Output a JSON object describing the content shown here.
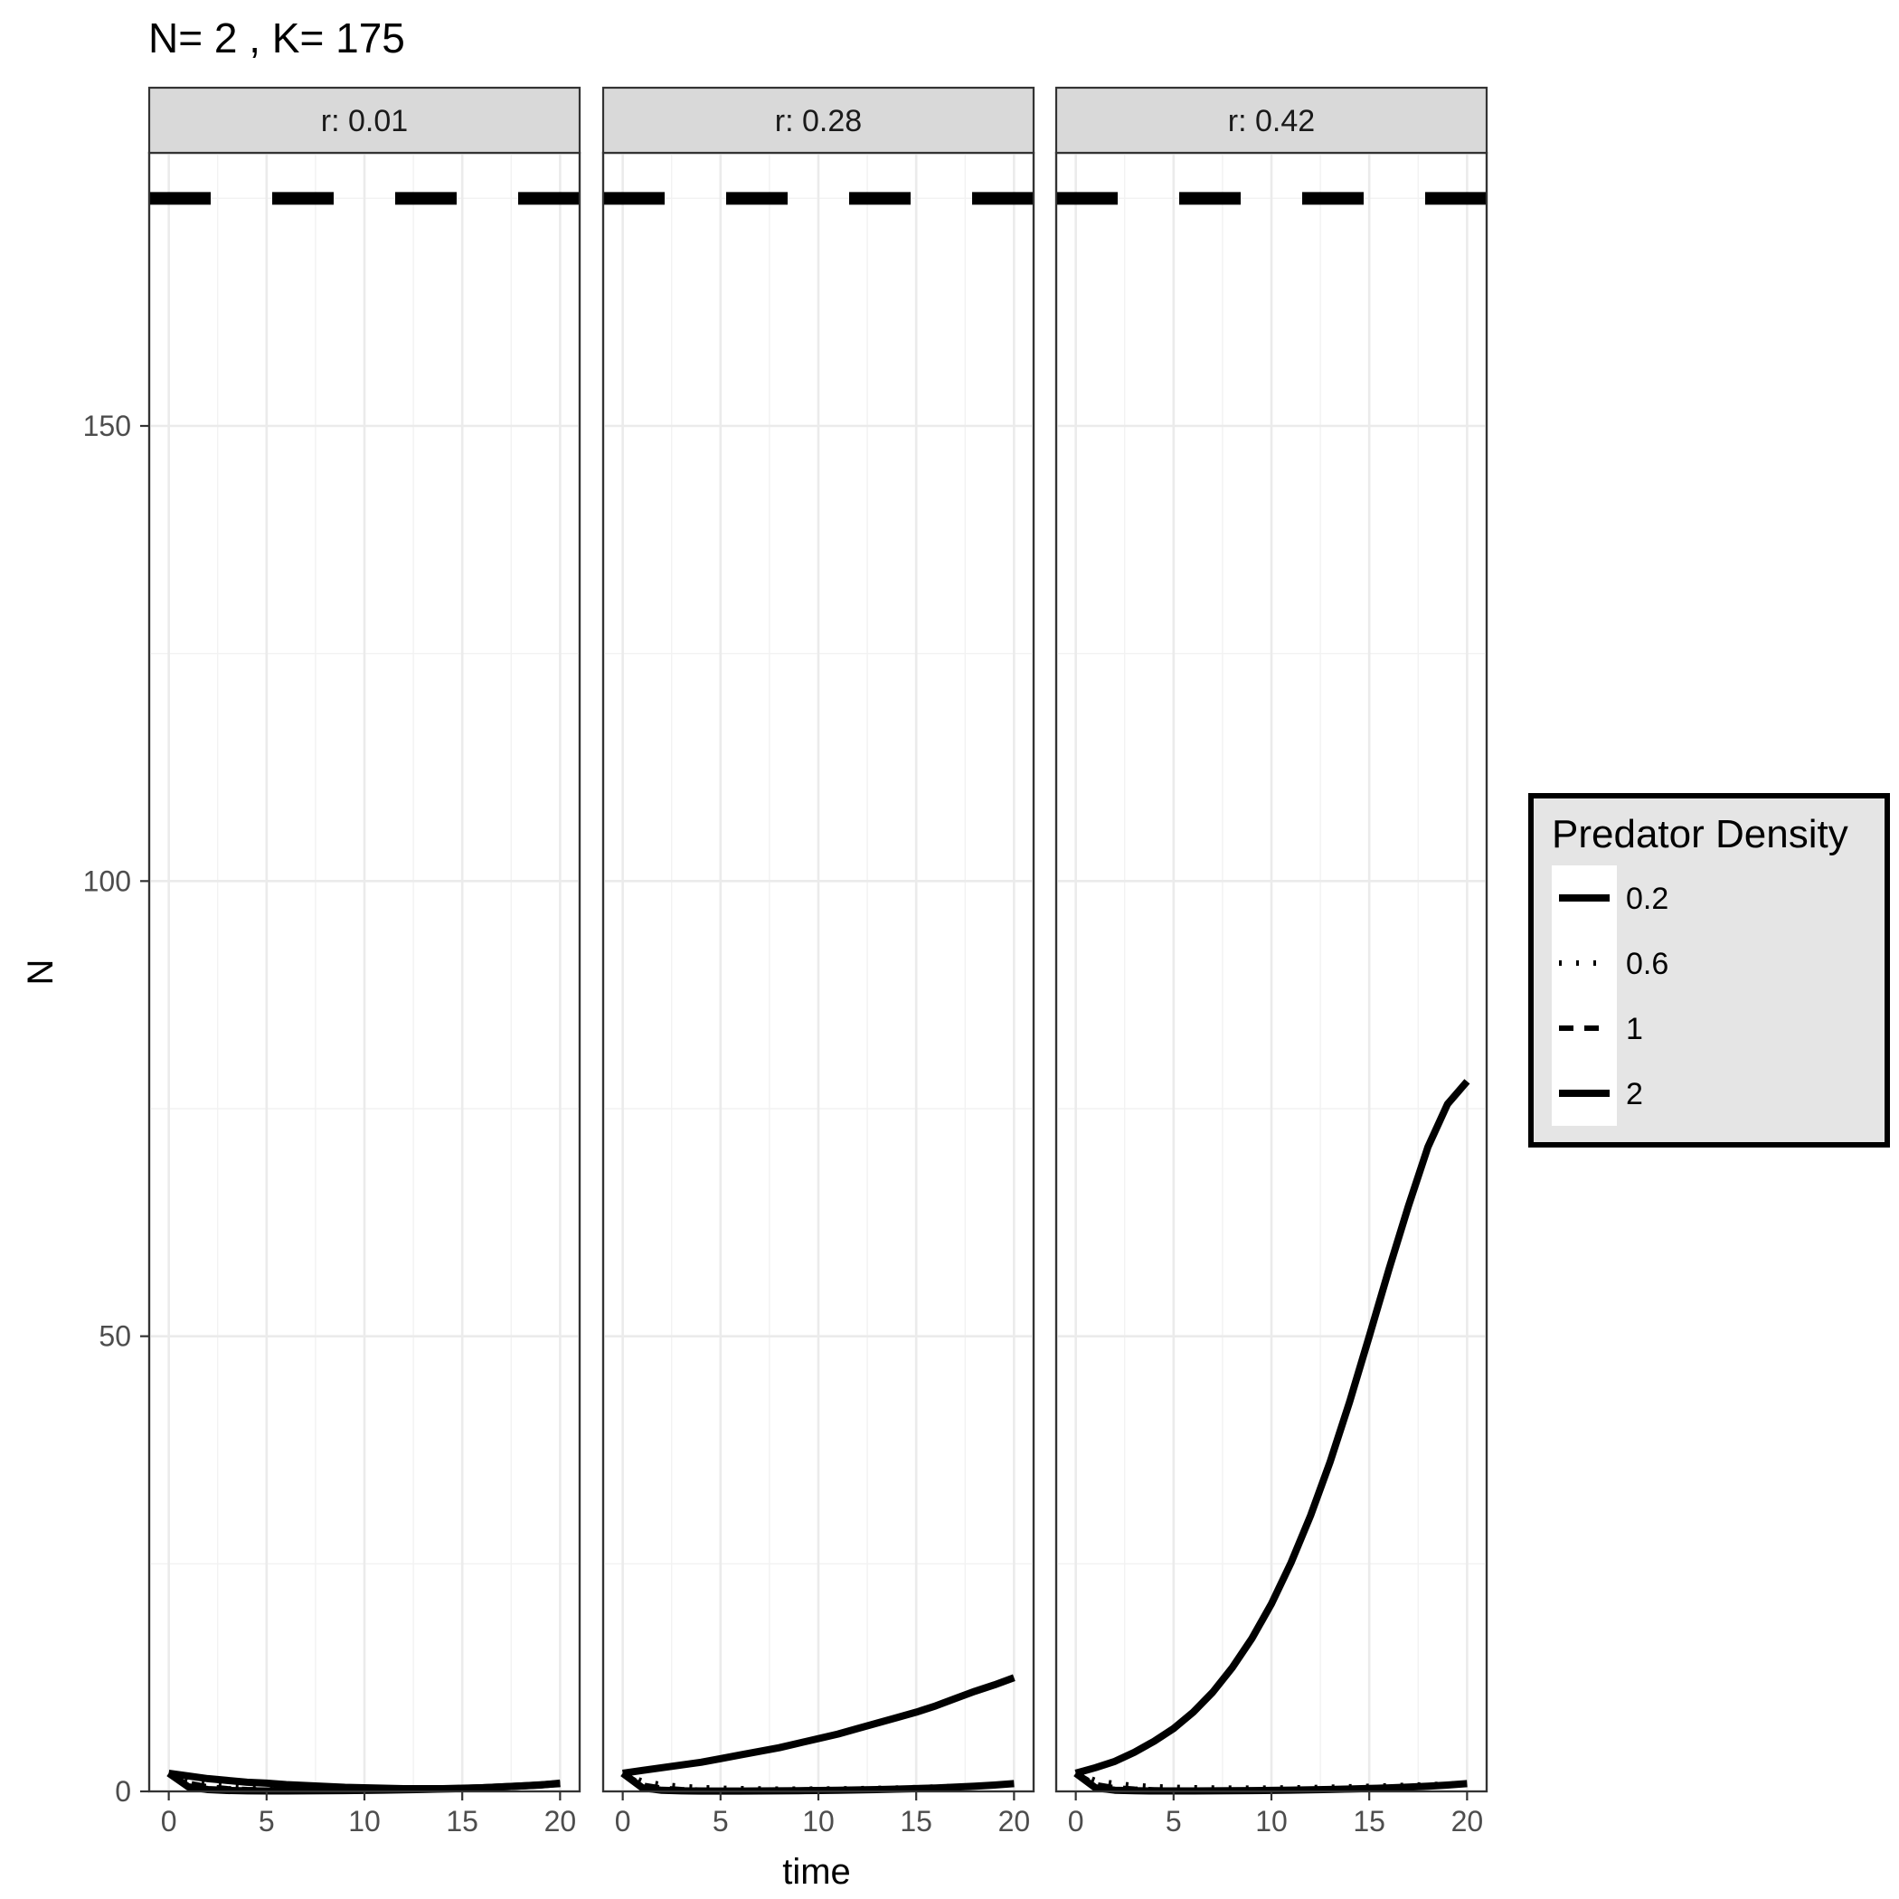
{
  "chart_data": {
    "type": "line",
    "title": "N= 2 , K= 175",
    "xlabel": "time",
    "ylabel": "N",
    "xlim": [
      -1,
      21
    ],
    "ylim": [
      0,
      180
    ],
    "x_ticks": [
      0,
      5,
      10,
      15,
      20
    ],
    "y_ticks": [
      0,
      50,
      100,
      150
    ],
    "grid": true,
    "facet_prefix": "r: ",
    "carrying_capacity": 175,
    "legend": {
      "title": "Predator Density",
      "position": "right",
      "entries": [
        {
          "label": "0.2",
          "linetype": "solid"
        },
        {
          "label": "0.6",
          "linetype": "dotted"
        },
        {
          "label": "1",
          "linetype": "dashed"
        },
        {
          "label": "2",
          "linetype": "solid"
        }
      ]
    },
    "x": [
      0,
      1,
      2,
      3,
      4,
      5,
      6,
      7,
      8,
      9,
      10,
      11,
      12,
      13,
      14,
      15,
      16,
      17,
      18,
      19,
      20
    ],
    "panels": [
      {
        "r": "0.01",
        "series": [
          {
            "name": "0.2",
            "values": [
              2.0,
              1.7,
              1.4,
              1.2,
              1.0,
              0.9,
              0.75,
              0.65,
              0.55,
              0.45,
              0.4,
              0.35,
              0.3,
              0.3,
              0.3,
              0.35,
              0.4,
              0.5,
              0.6,
              0.7,
              0.9
            ]
          },
          {
            "name": "0.6",
            "values": [
              2.0,
              1.2,
              0.8,
              0.6,
              0.45,
              0.35,
              0.28,
              0.22,
              0.18,
              0.16,
              0.15,
              0.15,
              0.16,
              0.18,
              0.22,
              0.28,
              0.35,
              0.45,
              0.55,
              0.7,
              0.85
            ]
          },
          {
            "name": "1",
            "values": [
              2.0,
              0.9,
              0.5,
              0.3,
              0.2,
              0.15,
              0.12,
              0.1,
              0.1,
              0.1,
              0.1,
              0.12,
              0.14,
              0.18,
              0.22,
              0.28,
              0.35,
              0.45,
              0.55,
              0.7,
              0.85
            ]
          },
          {
            "name": "2",
            "values": [
              2.0,
              0.5,
              0.2,
              0.1,
              0.06,
              0.05,
              0.05,
              0.06,
              0.07,
              0.09,
              0.11,
              0.14,
              0.17,
              0.21,
              0.26,
              0.32,
              0.4,
              0.5,
              0.6,
              0.72,
              0.85
            ]
          }
        ]
      },
      {
        "r": "0.28",
        "series": [
          {
            "name": "0.2",
            "values": [
              2.0,
              2.3,
              2.6,
              2.9,
              3.2,
              3.6,
              4.0,
              4.4,
              4.8,
              5.3,
              5.8,
              6.3,
              6.9,
              7.5,
              8.1,
              8.7,
              9.4,
              10.2,
              11.0,
              11.7,
              12.5
            ]
          },
          {
            "name": "0.6",
            "values": [
              2.0,
              1.1,
              0.75,
              0.55,
              0.42,
              0.35,
              0.3,
              0.27,
              0.25,
              0.25,
              0.26,
              0.28,
              0.3,
              0.33,
              0.37,
              0.42,
              0.48,
              0.55,
              0.62,
              0.72,
              0.85
            ]
          },
          {
            "name": "1",
            "values": [
              2.0,
              0.7,
              0.35,
              0.2,
              0.14,
              0.1,
              0.09,
              0.09,
              0.1,
              0.11,
              0.13,
              0.15,
              0.18,
              0.22,
              0.27,
              0.33,
              0.4,
              0.48,
              0.58,
              0.7,
              0.85
            ]
          },
          {
            "name": "2",
            "values": [
              2.0,
              0.4,
              0.12,
              0.06,
              0.04,
              0.04,
              0.04,
              0.05,
              0.06,
              0.08,
              0.1,
              0.13,
              0.16,
              0.2,
              0.25,
              0.31,
              0.38,
              0.47,
              0.57,
              0.7,
              0.85
            ]
          }
        ]
      },
      {
        "r": "0.42",
        "series": [
          {
            "name": "0.2",
            "values": [
              2.0,
              2.6,
              3.3,
              4.3,
              5.5,
              6.9,
              8.7,
              10.9,
              13.6,
              16.8,
              20.6,
              25.1,
              30.3,
              36.2,
              42.8,
              50.0,
              57.3,
              64.3,
              70.8,
              75.5,
              78.0
            ]
          },
          {
            "name": "0.6",
            "values": [
              2.0,
              1.2,
              0.85,
              0.65,
              0.52,
              0.45,
              0.4,
              0.37,
              0.36,
              0.36,
              0.37,
              0.39,
              0.42,
              0.46,
              0.51,
              0.56,
              0.62,
              0.68,
              0.74,
              0.8,
              0.87
            ]
          },
          {
            "name": "1",
            "values": [
              2.0,
              0.75,
              0.4,
              0.25,
              0.18,
              0.15,
              0.13,
              0.13,
              0.14,
              0.15,
              0.17,
              0.2,
              0.23,
              0.27,
              0.32,
              0.38,
              0.45,
              0.53,
              0.62,
              0.73,
              0.85
            ]
          },
          {
            "name": "2",
            "values": [
              2.0,
              0.4,
              0.13,
              0.07,
              0.05,
              0.05,
              0.05,
              0.06,
              0.07,
              0.09,
              0.11,
              0.14,
              0.17,
              0.21,
              0.26,
              0.32,
              0.39,
              0.48,
              0.58,
              0.7,
              0.85
            ]
          }
        ]
      }
    ]
  }
}
